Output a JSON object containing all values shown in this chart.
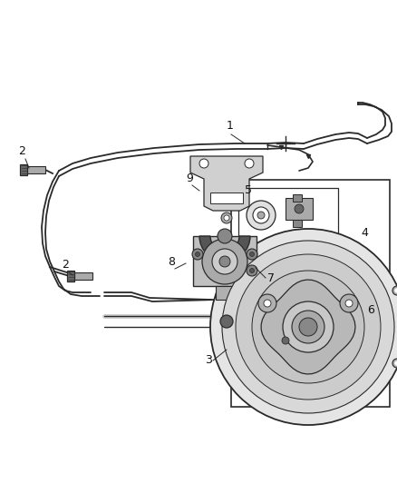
{
  "bg_color": "#ffffff",
  "fig_width": 4.38,
  "fig_height": 5.33,
  "dpi": 100,
  "line_color": "#2a2a2a",
  "gray_light": "#d8d8d8",
  "gray_med": "#aaaaaa",
  "gray_dark": "#666666"
}
